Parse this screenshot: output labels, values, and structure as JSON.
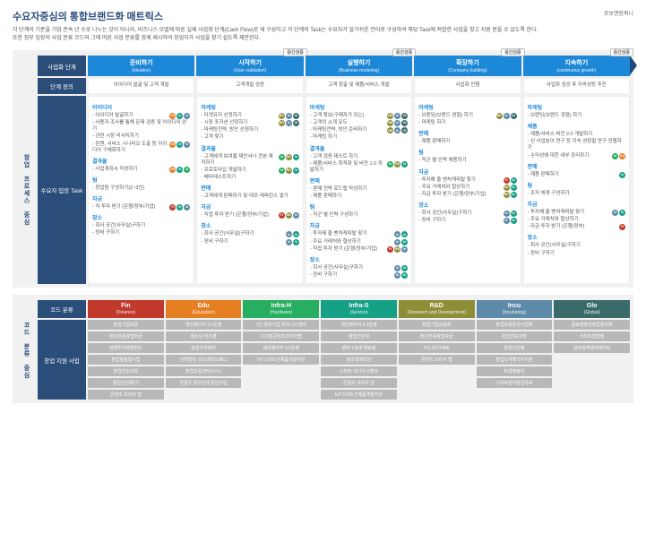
{
  "title": "수요자중심의 통합브랜드화 매트릭스",
  "brand": "로보앤컴퍼니",
  "intro_line1": "각 단계의 기준을 기업 존속 년 수로 나누는 것이 아니라, 비즈니스 모델에 따른 실제 사업화 단계(Cash Flow)로 재 구성하고 각 단계의 Task는 수요자가 알기쉬운 언어로 구성하여 해당 Task에 적합한 사업을 찾고 지원 받을 수 있도록 한다.",
  "intro_line2": "또한 정부 입장의 사업 분류 코드와 그에 따른 사업 분류를 함께 제시하여 창업자가 사업을 찾기 쉽도록 제안한다.",
  "mid_tag": "중간검증",
  "side_labels": {
    "top_upper": "창업 프로세스 중심",
    "bottom": "코드 분류 중심"
  },
  "row_headers": {
    "stage": "사업화 단계",
    "def": "단계 정의",
    "task": "수요자 입장 Task",
    "code": "코드 분류",
    "biz": "창업 지원 사업"
  },
  "dot_colors": {
    "Fin": "#c0392b",
    "Edu": "#e67e22",
    "InH": "#27ae60",
    "InS": "#16a085",
    "RD": "#8e8e38",
    "Inc": "#5d8aa8",
    "Glo": "#3a6a6a"
  },
  "stages": [
    {
      "name": "준비하기",
      "sub": "(Ideation)",
      "def": "아이디어 발굴 및 고객 개발",
      "sections": [
        {
          "title": "아이디어",
          "items": [
            {
              "t": "아이디어 발굴하기",
              "d": [
                "Edu",
                "InS",
                "Inc"
              ]
            },
            {
              "t": "사용자 조사를 통해 문제 검증 및 아이디어 얻기",
              "d": []
            },
            {
              "t": "관련 시장 리서치하기",
              "d": []
            },
            {
              "t": "린캔, 서비스 시나리오 도출 등 아이디어 구체화하기",
              "d": [
                "Edu",
                "InS",
                "Inc"
              ]
            }
          ]
        },
        {
          "title": "결과물",
          "items": [
            {
              "t": "사업계획서 작성하기",
              "d": [
                "Edu",
                "InS",
                "InH"
              ]
            }
          ]
        },
        {
          "title": "팀",
          "items": [
            {
              "t": "창업팀 구성하기(2~3인)",
              "d": []
            }
          ]
        },
        {
          "title": "자금",
          "items": [
            {
              "t": "직 투자 받기 (은행/정부/기업)",
              "d": [
                "Fin",
                "InS",
                "Inc"
              ]
            }
          ]
        },
        {
          "title": "장소",
          "items": [
            {
              "t": "회사 공간(사무실)구하기",
              "d": []
            },
            {
              "t": "장비 구하기",
              "d": []
            }
          ]
        }
      ]
    },
    {
      "name": "시작하기",
      "sub": "(User validation)",
      "def": "고객개발 검증",
      "sections": [
        {
          "title": "마케팅",
          "items": [
            {
              "t": "타겟유저 선정하기",
              "d": [
                "RD",
                "Inc",
                "Glo"
              ]
            },
            {
              "t": "시장 포지션 선정하기",
              "d": [
                "RD",
                "Inc",
                "Glo"
              ]
            },
            {
              "t": "마케팅전략, 방안 선정하기",
              "d": []
            },
            {
              "t": "고객 찾기",
              "d": []
            }
          ]
        },
        {
          "title": "결과물",
          "items": [
            {
              "t": "고객에게 보여줄 제안서나 견본 제작하기",
              "d": [
                "InH",
                "RD",
                "InS"
              ]
            },
            {
              "t": "프로토타입 개발하기",
              "d": [
                "InH",
                "RD",
                "InS"
              ]
            },
            {
              "t": "베타테스트하기",
              "d": []
            }
          ]
        },
        {
          "title": "판매",
          "items": [
            {
              "t": "고객에게 판매하기 및 데모·레퍼런스 쌓기",
              "d": []
            }
          ]
        },
        {
          "title": "자금",
          "items": [
            {
              "t": "직접 투자 받기 (은행/정부/기업)",
              "d": [
                "Fin",
                "RD",
                "Inc"
              ]
            }
          ]
        },
        {
          "title": "장소",
          "items": [
            {
              "t": "회사 공간(사무실)구하기",
              "d": [
                "Inc",
                "InS"
              ]
            },
            {
              "t": "장비 구하기",
              "d": [
                "Inc",
                "InS"
              ]
            }
          ]
        }
      ]
    },
    {
      "name": "실행하기",
      "sub": "(Business modeling)",
      "def": "고객 창출 및 제품/서비스 개발",
      "sections": [
        {
          "title": "마케팅",
          "items": [
            {
              "t": "고객 확보(구매자가 되는)",
              "d": [
                "RD",
                "Inc",
                "Glo"
              ]
            },
            {
              "t": "고객의 소개 유도",
              "d": [
                "RD",
                "Inc",
                "Glo"
              ]
            },
            {
              "t": "마케팅전략, 방안 준비하기",
              "d": [
                "RD",
                "Inc",
                "Glo"
              ]
            },
            {
              "t": "마케팅 하기",
              "d": []
            }
          ]
        },
        {
          "title": "결과물",
          "items": [
            {
              "t": "고객 검증 테스트 하기",
              "d": []
            },
            {
              "t": "제품/서비스 최적화 및 버전 1.0 개발하기",
              "d": [
                "InH",
                "RD",
                "InS"
              ]
            }
          ]
        },
        {
          "title": "판매",
          "items": [
            {
              "t": "판매 전략 로드맵 작성하기",
              "d": []
            },
            {
              "t": "제품 판매하기",
              "d": []
            }
          ]
        },
        {
          "title": "팀",
          "items": [
            {
              "t": "직군 별 인력 구성하기",
              "d": []
            }
          ]
        },
        {
          "title": "자금",
          "items": [
            {
              "t": "투자제 줄 벤처캐피탈 찾기",
              "d": [
                "Inc",
                "InS"
              ]
            },
            {
              "t": "주요 거래처와 협상하기",
              "d": [
                "Inc",
                "InS"
              ]
            },
            {
              "t": "직접 투자 받기 (은행/정부/기업)",
              "d": [
                "Fin",
                "RD",
                "Inc"
              ]
            }
          ]
        },
        {
          "title": "장소",
          "items": [
            {
              "t": "회사 공간(사무실)구하기",
              "d": [
                "Inc",
                "InS"
              ]
            },
            {
              "t": "장비 구하기",
              "d": [
                "Inc",
                "InS"
              ]
            }
          ]
        }
      ]
    },
    {
      "name": "확장하기",
      "sub": "(Company building)",
      "def": "사업화 진행",
      "sections": [
        {
          "title": "마케팅",
          "items": [
            {
              "t": "브랜딩(브랜드 경험) 하기",
              "d": [
                "RD",
                "Inc",
                "Glo"
              ]
            },
            {
              "t": "마케팅 하기",
              "d": []
            }
          ]
        },
        {
          "title": "판매",
          "items": [
            {
              "t": "제품 판매하기",
              "d": []
            }
          ]
        },
        {
          "title": "팀",
          "items": [
            {
              "t": "직군 별 인력 채용하기",
              "d": []
            }
          ]
        },
        {
          "title": "자금",
          "items": [
            {
              "t": "투자해 줄 벤처캐피탈 찾기",
              "d": [
                "Fin",
                "InS"
              ]
            },
            {
              "t": "주요 거래처와 협상하기",
              "d": [
                "RD",
                "InS"
              ]
            },
            {
              "t": "자금 투자 받기 (은행/정부/기업)",
              "d": [
                "RD",
                "InS"
              ]
            }
          ]
        },
        {
          "title": "장소",
          "items": [
            {
              "t": "회사 공간(사무실)구하기",
              "d": [
                "Inc",
                "InS"
              ]
            },
            {
              "t": "장비 구하기",
              "d": [
                "Inc",
                "InS"
              ]
            }
          ]
        }
      ]
    },
    {
      "name": "지속하기",
      "sub": "(continuous growth)",
      "def": "사업화 성공 후 지속성장 추진",
      "last": true,
      "sections": [
        {
          "title": "마케팅",
          "items": [
            {
              "t": "브랜딩(브랜드 경험) 하기",
              "d": []
            }
          ]
        },
        {
          "title": "제품",
          "items": [
            {
              "t": "제품/서비스 버전 2.0 개발하기",
              "d": []
            },
            {
              "t": "신 사업분야 연구 등 지속 성장할 연구 진행하기",
              "d": []
            },
            {
              "t": "수익성에 대한 내부 관리하기",
              "d": [
                "InH",
                "Edu"
              ]
            }
          ]
        },
        {
          "title": "판매",
          "items": [
            {
              "t": "제품 판매하기",
              "d": [
                "InS"
              ]
            }
          ]
        },
        {
          "title": "팀",
          "items": [
            {
              "t": "조직 체계 구성하기",
              "d": []
            }
          ]
        },
        {
          "title": "자금",
          "items": [
            {
              "t": "투자해 줄 벤처캐피탈 찾기",
              "d": [
                "Inc",
                "InS"
              ]
            },
            {
              "t": "주요 거래처와 협상하기",
              "d": []
            },
            {
              "t": "자금 투자 받기 (은행/정부)",
              "d": [
                "Fin"
              ]
            }
          ]
        },
        {
          "title": "장소",
          "items": [
            {
              "t": "회사 공간(사무실)구하기",
              "d": []
            },
            {
              "t": "장비 구하기",
              "d": []
            }
          ]
        }
      ]
    }
  ],
  "codes": [
    {
      "k": "Fin",
      "name": "Fin",
      "sub": "(Finance)",
      "color": "#c0392b",
      "biz": [
        "창업기업보증",
        "청년전용창업자금",
        "엔젤투자매칭펀드",
        "창업맞춤형사업",
        "창업선도대학",
        "창업인턴제(?)",
        "콘텐츠 코리아 랩"
      ]
    },
    {
      "k": "Edu",
      "name": "Edu",
      "sub": "(Education)",
      "color": "#e67e22",
      "biz": [
        "개인메이커 3.0운영",
        "청소년 비즈쿨",
        "창업아카데미",
        "산학협력 선도대학(LINC)",
        "창업교육센터(나노)",
        "콘텐츠 창의인재 동반사업"
      ]
    },
    {
      "k": "InH",
      "name": "Infra-H",
      "sub": "(Hardware)",
      "color": "#27ae60",
      "biz": [
        "1인 창조기업 비지니스센터",
        "디지털콘텐츠코리아랩",
        "제감메이커 3.0운영",
        "IoT스마트신제품개발지원"
      ]
    },
    {
      "k": "InS",
      "name": "Infra-S",
      "sub": "(Service)",
      "color": "#16a085",
      "biz": [
        "개인메이커 3.0운영",
        "창업인턴제",
        "벤처 1세대 멘토링",
        "창조경제혁신",
        "스마트 미디어 X캠프",
        "콘텐츠 코리아 랩",
        "IoT스마트신제품개발지원"
      ]
    },
    {
      "k": "RD",
      "name": "R&D",
      "sub": "(Research and Development)",
      "color": "#8e8e38",
      "biz": [
        "창업기업상용화",
        "청년전용창업자금",
        "이노비즈ONE",
        "콘텐츠 코리아 랩"
      ]
    },
    {
      "k": "Inc",
      "name": "Incu",
      "sub": "(Incubating)",
      "color": "#5d8aa8",
      "biz": [
        "창업보증중점사업화",
        "창업선도대학",
        "창업인턴제",
        "창업도약패키지지원",
        "BI경영평가",
        "스마트벤처창업학교"
      ]
    },
    {
      "k": "Glo",
      "name": "Glo",
      "sub": "(Global)",
      "color": "#3a6a6a",
      "biz": [
        "글로벌청년창업활성화",
        "스타트업칠레",
        "글로벌엑셀러레이터"
      ]
    }
  ]
}
